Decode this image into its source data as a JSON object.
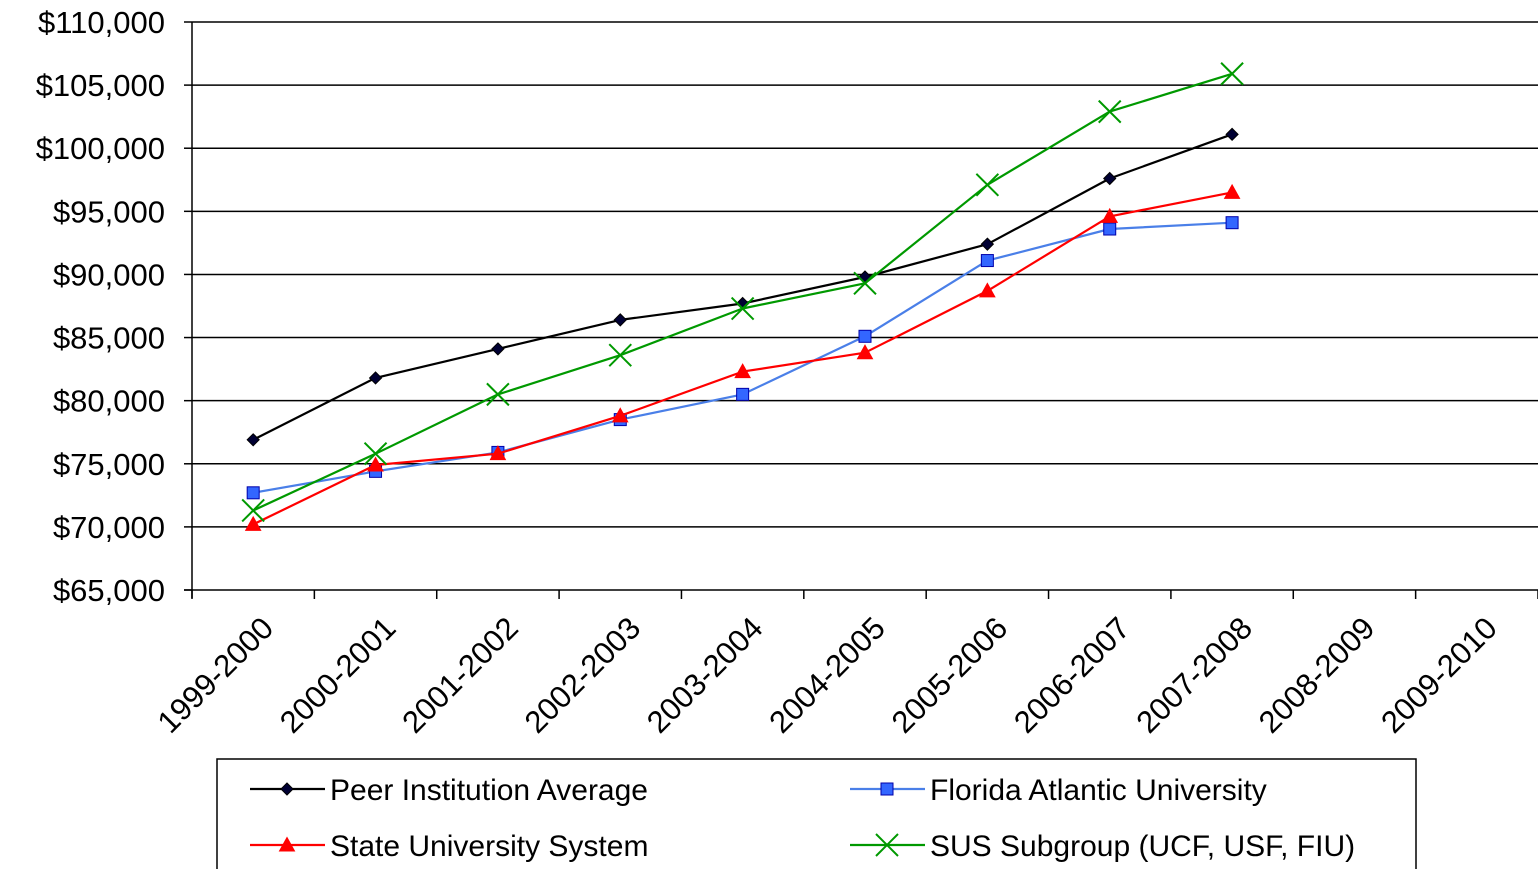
{
  "chart_data": {
    "type": "line",
    "title": "",
    "xlabel": "",
    "ylabel": "",
    "categories": [
      "1999-2000",
      "2000-2001",
      "2001-2002",
      "2002-2003",
      "2003-2004",
      "2004-2005",
      "2005-2006",
      "2006-2007",
      "2007-2008",
      "2008-2009",
      "2009-2010"
    ],
    "ylim": [
      65000,
      110000
    ],
    "ystep": 5000,
    "ytick_labels": [
      "$65,000",
      "$70,000",
      "$75,000",
      "$80,000",
      "$85,000",
      "$90,000",
      "$95,000",
      "$100,000",
      "$105,000",
      "$110,000"
    ],
    "grid": "horizontal",
    "legend_position": "bottom",
    "series": [
      {
        "name": "Peer Institution Average",
        "color": "#000000",
        "line_color": "#000000",
        "marker": "diamond",
        "marker_fill": "#000033",
        "values": [
          76900,
          81800,
          84100,
          86400,
          87700,
          89800,
          92400,
          97600,
          101100,
          null,
          null
        ]
      },
      {
        "name": "Florida Atlantic University",
        "color": "#3366ff",
        "line_color": "#4a7fe8",
        "marker": "square",
        "marker_fill": "#3366ff",
        "values": [
          72700,
          74400,
          75900,
          78500,
          80500,
          85100,
          91100,
          93600,
          94100,
          null,
          null
        ]
      },
      {
        "name": "State University System",
        "color": "#ff0000",
        "line_color": "#ff0000",
        "marker": "triangle",
        "marker_fill": "#ff0000",
        "values": [
          70200,
          74900,
          75800,
          78800,
          82300,
          83800,
          88700,
          94600,
          96500,
          null,
          null
        ]
      },
      {
        "name": "SUS Subgroup (UCF, USF, FIU)",
        "color": "#009900",
        "line_color": "#009900",
        "marker": "x",
        "marker_fill": "#009900",
        "values": [
          71300,
          75800,
          80500,
          83600,
          87300,
          89300,
          97100,
          102900,
          105900,
          null,
          null
        ]
      }
    ]
  }
}
